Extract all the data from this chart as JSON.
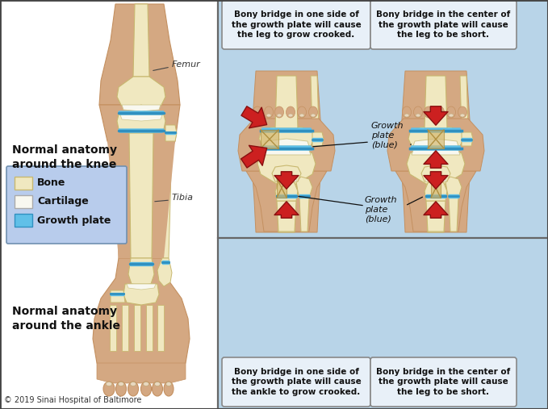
{
  "fig_width": 6.79,
  "fig_height": 5.07,
  "dpi": 100,
  "bg_white": "#ffffff",
  "bg_blue_light": "#b8d4e8",
  "bg_blue_lighter": "#c8dff0",
  "skin_light": "#d4a882",
  "skin_mid": "#c49060",
  "skin_dark": "#b87848",
  "bone_fill": "#f0e8c0",
  "bone_edge": "#c8b870",
  "cartilage_fill": "#f8f8f0",
  "cartilage_edge": "#d0c890",
  "gp_blue": "#60c0e8",
  "gp_blue_dark": "#3090c0",
  "red_arrow": "#cc2020",
  "red_dark": "#881010",
  "legend_bg": "#b8ccec",
  "textbox_bg": "#e8f0f8",
  "textbox_border": "#888888",
  "text_dark": "#111111",
  "panel_border": "#666666",
  "title_knee": "Normal anatomy\naround the knee",
  "title_ankle": "Normal anatomy\naround the ankle",
  "label_bone": "Bone",
  "label_cartilage": "Cartilage",
  "label_growth_plate": "Growth plate",
  "label_femur": "Femur",
  "label_tibia": "Tibia",
  "caption": "© 2019 Sinai Hospital of Baltimore",
  "knee_side_text": "Bony bridge in one side of\nthe growth plate will cause\nthe leg to grow crooked.",
  "knee_center_text": "Bony bridge in the center of\nthe growth plate will cause\nthe leg to be short.",
  "ankle_side_text": "Bony bridge in one side of\nthe growth plate will cause\nthe ankle to grow crooked.",
  "ankle_center_text": "Bony bridge in the center of\nthe growth plate will cause\nthe leg to be short.",
  "gp_label": "Growth\nplate\n(blue)"
}
